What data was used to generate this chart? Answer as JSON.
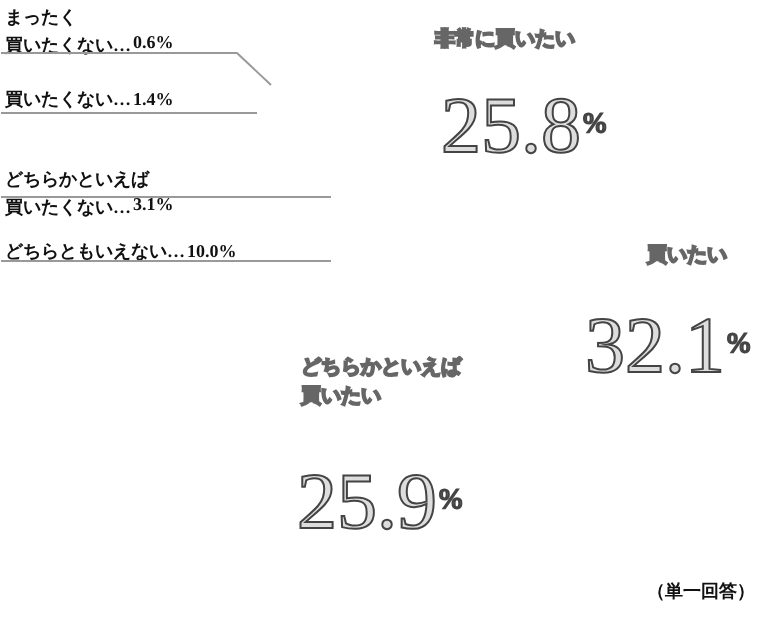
{
  "chart_data": {
    "type": "other",
    "categories": [
      "非常に買いたい",
      "買いたい",
      "どちらかといえば買いたい",
      "どちらともいえない…",
      "どちらかといえば買いたくない…",
      "買いたくない…",
      "まったく買いたくない…"
    ],
    "values": [
      25.8,
      32.1,
      25.9,
      10.0,
      3.1,
      1.4,
      0.6
    ],
    "value_labels": [
      "25.8%",
      "32.1%",
      "25.9%",
      "10.0%",
      "3.1%",
      "1.4%",
      "0.6%"
    ],
    "annotations": [
      "（単一回答）"
    ]
  }
}
